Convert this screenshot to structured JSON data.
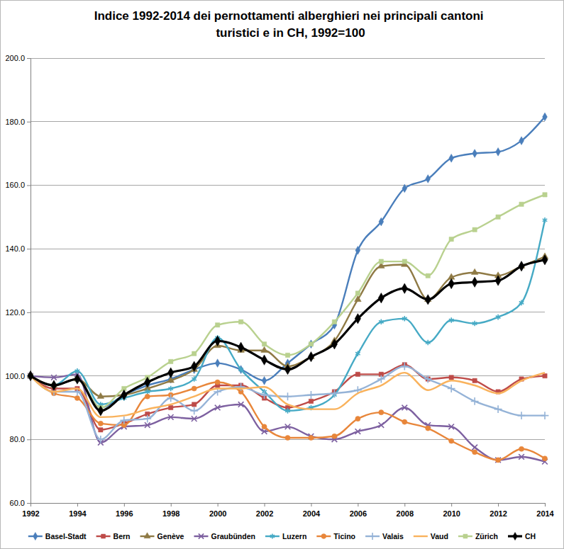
{
  "chart_data": {
    "type": "line",
    "title": "Indice 1992-2014 dei pernottamenti alberghieri nei principali cantoni turistici e in CH, 1992=100",
    "x": [
      1992,
      1993,
      1994,
      1995,
      1996,
      1997,
      1998,
      1999,
      2000,
      2001,
      2002,
      2003,
      2004,
      2005,
      2006,
      2007,
      2008,
      2009,
      2010,
      2011,
      2012,
      2013,
      2014
    ],
    "xlim": [
      1992,
      2014
    ],
    "xticks": [
      1992,
      1994,
      1996,
      1998,
      2000,
      2002,
      2004,
      2006,
      2008,
      2010,
      2012,
      2014
    ],
    "ylim": [
      60,
      200
    ],
    "yticks": [
      {
        "value": 60,
        "label": "60.0"
      },
      {
        "value": 80,
        "label": "80.0"
      },
      {
        "value": 100,
        "label": "100.0"
      },
      {
        "value": 120,
        "label": "120.0"
      },
      {
        "value": 140,
        "label": "140.0"
      },
      {
        "value": 160,
        "label": "160.0"
      },
      {
        "value": 180,
        "label": "180.0"
      },
      {
        "value": 200,
        "label": "200.0"
      }
    ],
    "grid": true,
    "legend": "bottom",
    "line_style": "smooth",
    "series": [
      {
        "name": "Basel-Stadt",
        "color": "#4a7ebb",
        "marker": "diamond",
        "values": [
          100,
          97,
          99,
          90,
          94,
          97,
          99,
          102,
          104,
          102,
          98.5,
          104,
          110,
          116,
          139.5,
          148.5,
          159,
          162,
          168.5,
          170,
          170.5,
          174,
          181.5
        ]
      },
      {
        "name": "Bern",
        "color": "#be4b48",
        "marker": "square",
        "values": [
          100,
          96,
          96,
          83,
          85,
          88,
          90,
          91,
          97,
          97,
          93,
          90,
          92,
          95,
          100.5,
          100.5,
          103.5,
          99,
          99.5,
          98.5,
          95,
          99,
          100
        ]
      },
      {
        "name": "Genève",
        "color": "#8f7a45",
        "marker": "triangle",
        "values": [
          100,
          97,
          99,
          93.5,
          94,
          96,
          98.5,
          102,
          109.5,
          108,
          108,
          103,
          106,
          111,
          124,
          134.5,
          135,
          124,
          131,
          132.5,
          131.5,
          134.5,
          137.5
        ]
      },
      {
        "name": "Graubünden",
        "color": "#7d60a0",
        "marker": "x",
        "values": [
          100,
          99.5,
          100.5,
          79,
          84,
          84.5,
          87,
          86.5,
          90,
          91,
          82.5,
          84,
          81,
          80,
          82.5,
          84.5,
          90,
          84.5,
          84,
          77.5,
          73.5,
          74.5,
          73
        ]
      },
      {
        "name": "Luzern",
        "color": "#46aac5",
        "marker": "star",
        "values": [
          100,
          97,
          101.5,
          91,
          93,
          95,
          96,
          99,
          112,
          102,
          95,
          89,
          90,
          94,
          107,
          117,
          118,
          110.5,
          117.5,
          116.5,
          118.5,
          123,
          149
        ]
      },
      {
        "name": "Ticino",
        "color": "#e8863a",
        "marker": "circle",
        "values": [
          100,
          94.5,
          93,
          85,
          84.5,
          93.5,
          94,
          96,
          98,
          95,
          84,
          80.5,
          80.5,
          81,
          86.5,
          88.5,
          85.5,
          83.5,
          79.5,
          76,
          73.5,
          77,
          74
        ]
      },
      {
        "name": "Valais",
        "color": "#95b3d7",
        "marker": "plus",
        "values": [
          100,
          95,
          95,
          80,
          86,
          86.5,
          93,
          89,
          95,
          96.5,
          94,
          93.5,
          94,
          94.5,
          95.5,
          99,
          103,
          99,
          96,
          92,
          89.5,
          87.5,
          87.5
        ]
      },
      {
        "name": "Vaud",
        "color": "#f9b25c",
        "marker": "none",
        "values": [
          100,
          95,
          96,
          87,
          87.5,
          89.5,
          91,
          93.5,
          96,
          96,
          96.5,
          91,
          89.5,
          89.5,
          94.5,
          97,
          101,
          95.5,
          98.5,
          97,
          94.5,
          98.5,
          101
        ]
      },
      {
        "name": "Zürich",
        "color": "#b9d18f",
        "marker": "square",
        "values": [
          100,
          97,
          99,
          90,
          96,
          99.5,
          104.5,
          107,
          116,
          117,
          110,
          106.5,
          110,
          117,
          126,
          136,
          136,
          131.5,
          143,
          146,
          150,
          154,
          157
        ]
      },
      {
        "name": "CH",
        "color": "#000000",
        "marker": "diamond",
        "values": [
          100,
          97,
          99,
          89,
          94,
          98,
          101,
          103,
          111,
          109,
          105,
          102,
          106,
          110,
          118,
          124.5,
          127.5,
          124,
          129,
          129.5,
          130,
          134.5,
          136.5
        ]
      }
    ]
  }
}
